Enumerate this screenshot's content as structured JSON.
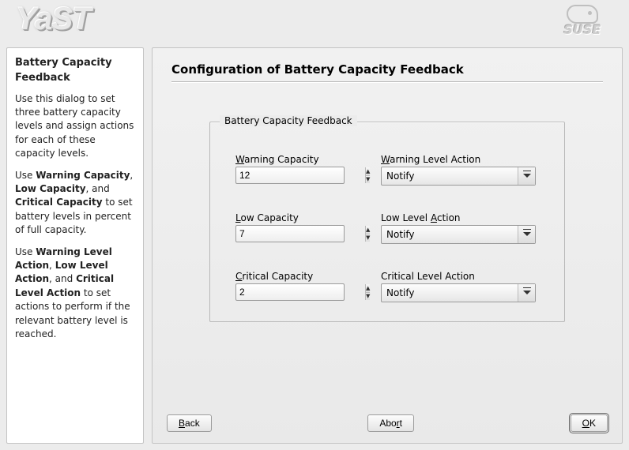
{
  "branding": {
    "app_name": "YaST",
    "vendor": "SUSE"
  },
  "help": {
    "title": "Battery Capacity Feedback",
    "p1": "Use this dialog to set three battery capacity levels and assign actions for each of these capacity levels.",
    "p2_pre": "Use ",
    "p2_b1": "Warning Capacity",
    "p2_m1": ", ",
    "p2_b2": "Low Capacity",
    "p2_m2": ", and ",
    "p2_b3": "Critical Capacity",
    "p2_post": " to set battery levels in percent of full capacity.",
    "p3_pre": "Use ",
    "p3_b1": "Warning Level Action",
    "p3_m1": ", ",
    "p3_b2": "Low Level Action",
    "p3_m2": ", and ",
    "p3_b3": "Critical Level Action",
    "p3_post": " to set actions to perform if the relevant battery level is reached."
  },
  "main": {
    "title": "Configuration of Battery Capacity Feedback",
    "fieldset_legend": "Battery Capacity Feedback",
    "rows": {
      "warning": {
        "cap_prefix": "W",
        "cap_rest": "arning Capacity",
        "cap_value": "12",
        "act_prefix": "W",
        "act_rest": "arning Level Action",
        "act_value": "Notify"
      },
      "low": {
        "cap_prefix": "L",
        "cap_rest": "ow Capacity",
        "cap_value": "7",
        "act_pre": "Low Level ",
        "act_accel": "A",
        "act_post": "ction",
        "act_value": "Notify"
      },
      "critical": {
        "cap_prefix": "C",
        "cap_rest": "ritical Capacity",
        "cap_value": "2",
        "act_label": "Critical Level Action",
        "act_value": "Notify"
      }
    }
  },
  "buttons": {
    "back_accel": "B",
    "back_rest": "ack",
    "abort_pre": "Abo",
    "abort_accel": "r",
    "abort_post": "t",
    "ok_accel": "O",
    "ok_rest": "K"
  },
  "colors": {
    "bg": "#ececec",
    "panel_border": "#c4c4c4",
    "text": "#000000"
  }
}
